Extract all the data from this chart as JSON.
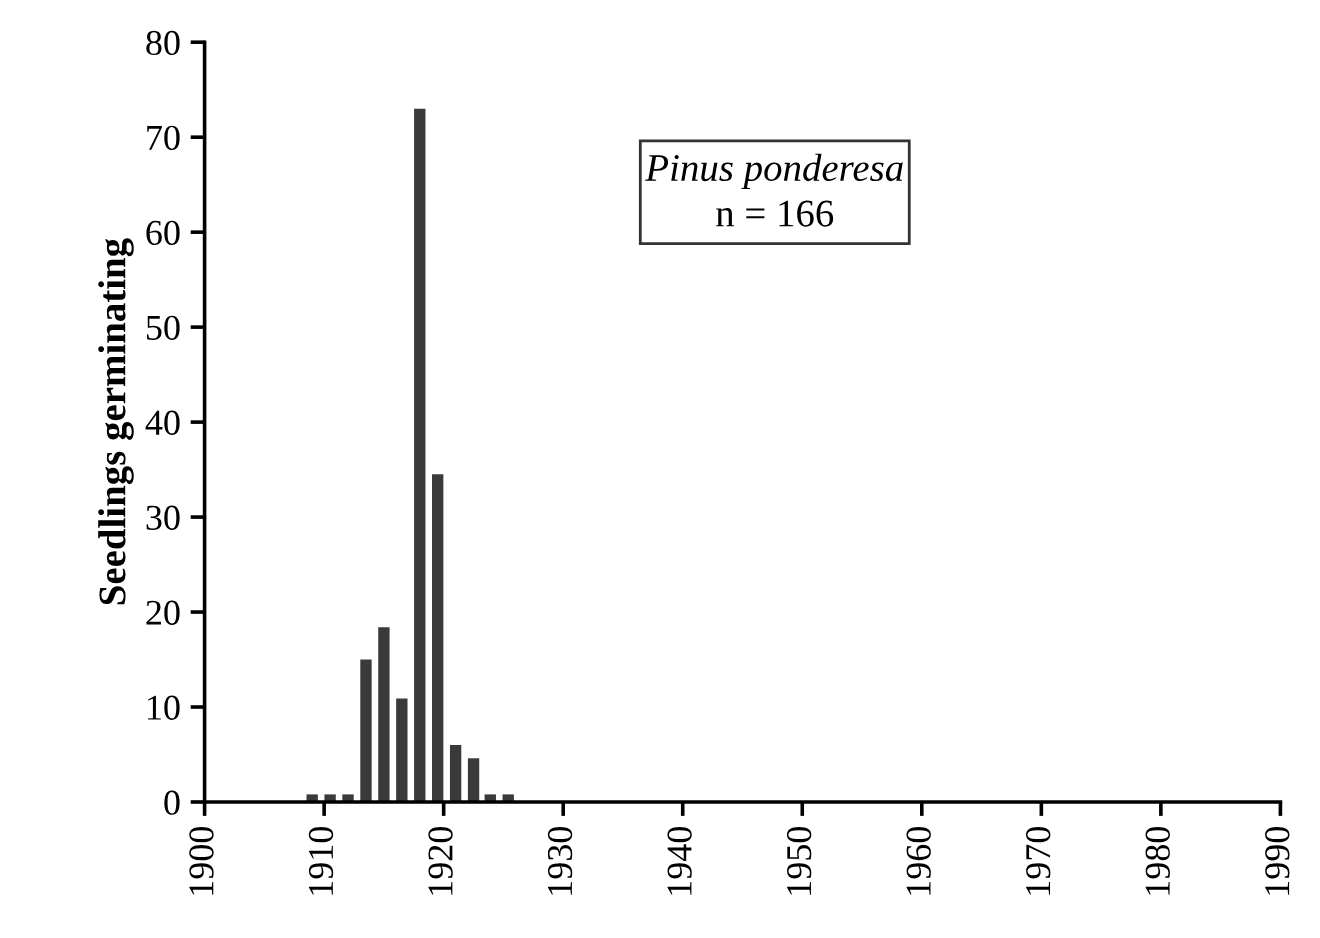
{
  "chart_data": {
    "type": "bar",
    "ylabel": "Seedlings germinating",
    "x": [
      1909.0,
      1910.5,
      1912.0,
      1913.5,
      1915.0,
      1916.5,
      1918.0,
      1919.5,
      1921.0,
      1922.5,
      1923.9,
      1925.4
    ],
    "values": [
      0.8,
      0.8,
      0.8,
      15,
      18.4,
      10.9,
      73,
      34.5,
      6,
      4.6,
      0.8,
      0.8
    ],
    "color": "#3a3a3a",
    "xlim": [
      1900,
      1990
    ],
    "xticks": [
      1900,
      1910,
      1920,
      1930,
      1940,
      1950,
      1960,
      1970,
      1980,
      1990
    ],
    "ylim": [
      0,
      80
    ],
    "yticks": [
      0,
      10,
      20,
      30,
      40,
      50,
      60,
      70,
      80
    ],
    "grid": false,
    "legend": false,
    "annotations": [
      "Pinus ponderesa",
      "n = 166"
    ]
  }
}
